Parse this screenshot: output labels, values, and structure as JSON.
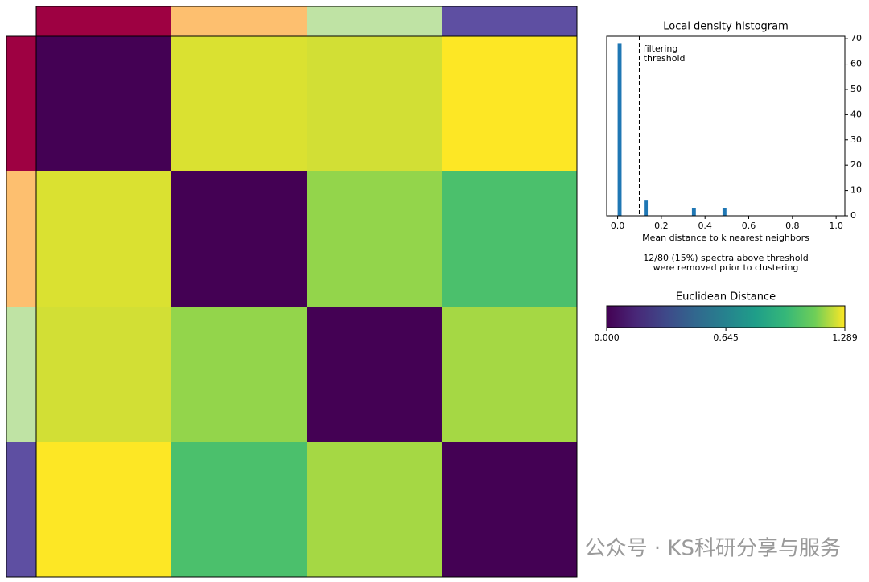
{
  "chart_data": [
    {
      "type": "heatmap",
      "colormap": "viridis",
      "clim": [
        0,
        1.289
      ],
      "group_colors": [
        "#9e0142",
        "#fdbf6f",
        "#bfe3a4",
        "#5e4fa2"
      ],
      "values": [
        [
          0,
          1.25,
          1.24,
          1.289
        ],
        [
          1.25,
          0,
          1.17,
          1.03
        ],
        [
          1.24,
          1.17,
          0,
          1.19
        ],
        [
          1.289,
          1.03,
          1.19,
          0
        ]
      ]
    },
    {
      "type": "histogram",
      "title": "Local density histogram",
      "xlabel": "Mean distance to k nearest neighbors",
      "color": "#1f77b4",
      "bins": [
        0,
        0.02,
        0.04,
        0.06,
        0.08,
        0.1,
        0.12,
        0.14,
        0.16,
        0.18,
        0.2,
        0.22,
        0.24,
        0.26,
        0.28,
        0.3,
        0.32,
        0.34,
        0.36,
        0.38,
        0.4,
        0.42,
        0.44,
        0.46,
        0.48,
        0.5,
        0.52,
        0.54,
        0.56,
        0.58,
        0.6,
        0.62,
        0.64,
        0.66,
        0.68,
        0.7,
        0.72,
        0.74,
        0.76,
        0.78,
        0.8,
        0.82,
        0.84,
        0.86,
        0.88,
        0.9,
        0.92,
        0.94,
        0.96,
        0.98,
        1.0
      ],
      "counts": [
        68,
        0,
        0,
        0,
        0,
        0,
        6,
        0,
        0,
        0,
        0,
        0,
        0,
        0,
        0,
        0,
        0,
        3,
        0,
        0,
        0,
        0,
        0,
        0,
        3,
        0,
        0,
        0,
        0,
        0,
        0,
        0,
        0,
        0,
        0,
        0,
        0,
        0,
        0,
        0,
        0,
        0,
        0,
        0,
        0,
        0,
        0,
        0,
        0,
        0
      ],
      "threshold": 0.1,
      "threshold_label": [
        "filtering",
        "threshold"
      ],
      "xlim": [
        -0.05,
        1.04
      ],
      "ylim": [
        0,
        71
      ],
      "xticks": [
        {
          "value": 0,
          "label": "0.0"
        },
        0.2,
        0.4,
        0.6,
        0.8,
        {
          "value": 1,
          "label": "1.0"
        }
      ],
      "yticks": [
        0,
        10,
        20,
        30,
        40,
        50,
        60,
        70
      ],
      "note": [
        "12/80 (15%) spectra above threshold",
        "were removed prior to clustering"
      ]
    },
    {
      "type": "colorbar",
      "title": "Euclidean Distance",
      "colormap": "viridis",
      "clim": [
        0,
        1.289
      ],
      "ticks": [
        {
          "value": 0,
          "label": "0.000"
        },
        0.645,
        1.289
      ]
    }
  ],
  "watermark": "公众号 · KS科研分享与服务"
}
